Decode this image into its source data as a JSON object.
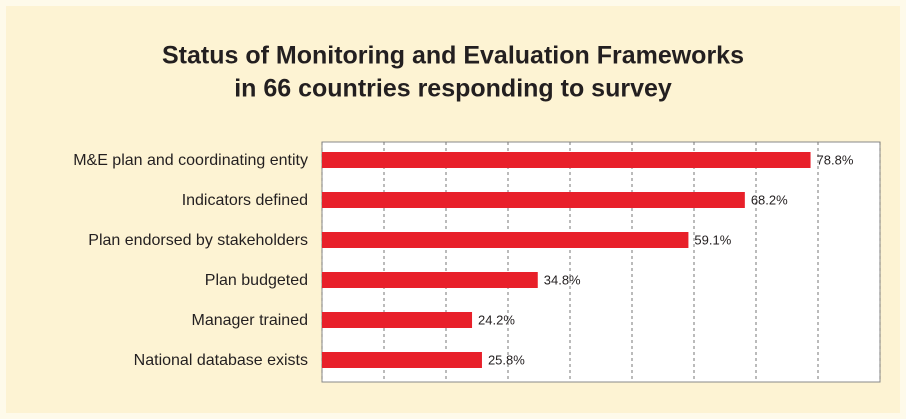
{
  "chart_data": {
    "type": "bar",
    "orientation": "horizontal",
    "title": [
      "Status of Monitoring and Evaluation Frameworks",
      "in 66 countries responding to survey"
    ],
    "categories": [
      "M&E plan and coordinating entity",
      "Indicators defined",
      "Plan endorsed by stakeholders",
      "Plan budgeted",
      "Manager trained",
      "National database exists"
    ],
    "values": [
      78.8,
      68.2,
      59.1,
      34.8,
      24.2,
      25.8
    ],
    "value_labels": [
      "78.8%",
      "68.2%",
      "59.1%",
      "34.8%",
      "24.2%",
      "25.8%"
    ],
    "color": "#e8202a",
    "xlim": [
      0,
      90
    ],
    "xticks": [
      0,
      10,
      20,
      30,
      40,
      50,
      60,
      70,
      80,
      90
    ],
    "grid": true
  }
}
